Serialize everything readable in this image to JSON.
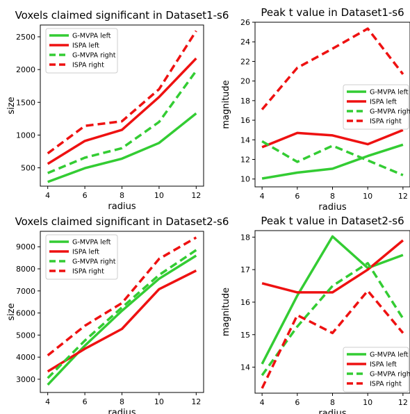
{
  "chart_data": [
    {
      "type": "line",
      "title": "Voxels claimed significant in Dataset1-s6",
      "xlabel": "radius",
      "ylabel": "size",
      "x": [
        4,
        6,
        8,
        10,
        12
      ],
      "xticks": [
        "4",
        "6",
        "8",
        "10",
        "12"
      ],
      "ylim": [
        220,
        2680
      ],
      "yticks": [
        500,
        1000,
        1500,
        2000,
        2500
      ],
      "legend_position": "top-left",
      "series": [
        {
          "name": "G-MVPA left",
          "color": "#33cc33",
          "dash": false,
          "values": [
            285,
            495,
            640,
            880,
            1330
          ]
        },
        {
          "name": "ISPA left",
          "color": "#ee1111",
          "dash": false,
          "values": [
            560,
            910,
            1080,
            1580,
            2170
          ]
        },
        {
          "name": "G-MVPA right",
          "color": "#33cc33",
          "dash": true,
          "values": [
            420,
            655,
            800,
            1200,
            1980
          ]
        },
        {
          "name": "ISPA right",
          "color": "#ee1111",
          "dash": true,
          "values": [
            720,
            1140,
            1210,
            1700,
            2590
          ]
        }
      ]
    },
    {
      "type": "line",
      "title": "Peak t value in Dataset1-s6",
      "xlabel": "radius",
      "ylabel": "magnitude",
      "x": [
        4,
        6,
        8,
        10,
        12
      ],
      "xticks": [
        "4",
        "6",
        "8",
        "10",
        "12"
      ],
      "ylim": [
        9.2,
        26.0
      ],
      "yticks": [
        10,
        12,
        14,
        16,
        18,
        20,
        22,
        24,
        26
      ],
      "legend_position": "center-right",
      "series": [
        {
          "name": "G-MVPA left",
          "color": "#33cc33",
          "dash": false,
          "values": [
            10.05,
            10.65,
            11.05,
            12.35,
            13.5
          ]
        },
        {
          "name": "ISPA left",
          "color": "#ee1111",
          "dash": false,
          "values": [
            13.25,
            14.7,
            14.45,
            13.55,
            15.0
          ]
        },
        {
          "name": "G-MVPA right",
          "color": "#33cc33",
          "dash": true,
          "values": [
            13.85,
            11.75,
            13.4,
            11.9,
            10.4
          ]
        },
        {
          "name": "ISPA right",
          "color": "#ee1111",
          "dash": true,
          "values": [
            17.1,
            21.35,
            23.3,
            25.35,
            20.7
          ]
        }
      ]
    },
    {
      "type": "line",
      "title": "Voxels claimed significant in Dataset2-s6",
      "xlabel": "radius",
      "ylabel": "size",
      "x": [
        4,
        6,
        8,
        10,
        12
      ],
      "xticks": [
        "4",
        "6",
        "8",
        "10",
        "12"
      ],
      "ylim": [
        2400,
        9700
      ],
      "yticks": [
        3000,
        4000,
        5000,
        6000,
        7000,
        8000,
        9000
      ],
      "legend_position": "top-left",
      "series": [
        {
          "name": "G-MVPA left",
          "color": "#33cc33",
          "dash": false,
          "values": [
            2750,
            4520,
            6100,
            7550,
            8600
          ]
        },
        {
          "name": "ISPA left",
          "color": "#ee1111",
          "dash": false,
          "values": [
            3350,
            4380,
            5280,
            7080,
            7920
          ]
        },
        {
          "name": "G-MVPA right",
          "color": "#33cc33",
          "dash": true,
          "values": [
            3050,
            4750,
            6250,
            7720,
            8850
          ]
        },
        {
          "name": "ISPA right",
          "color": "#ee1111",
          "dash": true,
          "values": [
            4080,
            5420,
            6450,
            8450,
            9420
          ]
        }
      ]
    },
    {
      "type": "line",
      "title": "Peak t value in Dataset2-s6",
      "xlabel": "radius",
      "ylabel": "magnitude",
      "x": [
        4,
        6,
        8,
        10,
        12
      ],
      "xticks": [
        "4",
        "6",
        "8",
        "10",
        "12"
      ],
      "ylim": [
        13.2,
        18.2
      ],
      "yticks": [
        14,
        15,
        16,
        17,
        18
      ],
      "legend_position": "bottom-right",
      "series": [
        {
          "name": "G-MVPA left",
          "color": "#33cc33",
          "dash": false,
          "values": [
            14.1,
            16.2,
            18.02,
            17.05,
            17.45
          ]
        },
        {
          "name": "ISPA left",
          "color": "#ee1111",
          "dash": false,
          "values": [
            16.58,
            16.3,
            16.3,
            17.0,
            17.9
          ]
        },
        {
          "name": "G-MVPA right",
          "color": "#33cc33",
          "dash": true,
          "values": [
            13.75,
            15.25,
            16.5,
            17.2,
            15.5
          ]
        },
        {
          "name": "ISPA right",
          "color": "#ee1111",
          "dash": true,
          "values": [
            13.35,
            15.6,
            15.05,
            16.35,
            15.05
          ]
        }
      ]
    }
  ]
}
